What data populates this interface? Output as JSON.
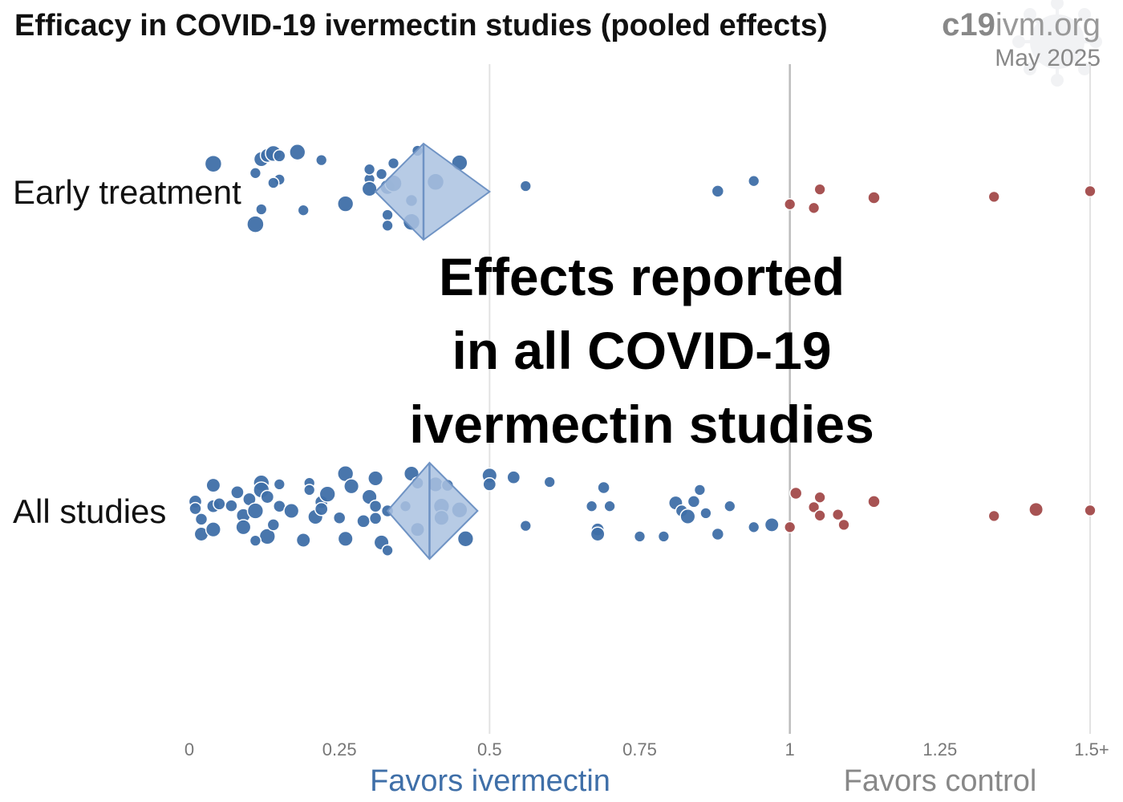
{
  "chart_data": {
    "type": "scatter",
    "title": "Efficacy in COVID-19 ivermectin studies (pooled effects)",
    "brand": {
      "bold": "c19",
      "light": "ivm.org"
    },
    "date": "May 2025",
    "overlay_text": [
      "Effects reported",
      "in all COVID-19",
      "ivermectin studies"
    ],
    "x_ticks": [
      "0",
      "0.25",
      "0.5",
      "0.75",
      "1",
      "1.25",
      "1.5+"
    ],
    "x_range": [
      0,
      1.5
    ],
    "reference_line": 1,
    "favors_left": "Favors ivermectin",
    "favors_right": "Favors control",
    "colors": {
      "benefit": "#3f6fa8",
      "harm": "#a24a4a",
      "diamond_fill": "#aac2e0",
      "diamond_stroke": "#6f93c4",
      "favor_left": "#3f6fa8",
      "favor_right": "#888888"
    },
    "series": [
      {
        "name": "Early treatment",
        "pooled": {
          "estimate": 0.39,
          "low": 0.31,
          "high": 0.5
        },
        "points": [
          [
            0.04,
            0.6,
            1.0
          ],
          [
            0.11,
            0.4,
            0.4
          ],
          [
            0.12,
            0.7,
            0.8
          ],
          [
            0.13,
            0.78,
            0.7
          ],
          [
            0.14,
            0.82,
            0.9
          ],
          [
            0.15,
            0.77,
            0.5
          ],
          [
            0.18,
            0.85,
            0.9
          ],
          [
            0.22,
            0.68,
            0.4
          ],
          [
            0.15,
            0.26,
            0.4
          ],
          [
            0.14,
            0.19,
            0.4
          ],
          [
            0.12,
            -0.38,
            0.4
          ],
          [
            0.11,
            -0.7,
            1.0
          ],
          [
            0.19,
            -0.4,
            0.4
          ],
          [
            0.26,
            -0.26,
            0.9
          ],
          [
            0.3,
            0.27,
            0.4
          ],
          [
            0.3,
            0.48,
            0.4
          ],
          [
            0.32,
            0.38,
            0.4
          ],
          [
            0.33,
            0.1,
            0.8
          ],
          [
            0.3,
            0.06,
            0.8
          ],
          [
            0.34,
            0.18,
            1.0
          ],
          [
            0.33,
            -0.5,
            0.4
          ],
          [
            0.33,
            -0.73,
            0.4
          ],
          [
            0.34,
            0.61,
            0.4
          ],
          [
            0.38,
            0.88,
            0.4
          ],
          [
            0.37,
            -0.19,
            0.5
          ],
          [
            0.37,
            -0.65,
            1.0
          ],
          [
            0.41,
            0.21,
            1.0
          ],
          [
            0.45,
            0.62,
            0.9
          ],
          [
            0.56,
            0.12,
            0.4
          ],
          [
            0.88,
            0.01,
            0.5
          ],
          [
            0.94,
            0.23,
            0.4
          ],
          [
            1.0,
            -0.27,
            0.4
          ],
          [
            1.04,
            -0.35,
            0.4
          ],
          [
            1.05,
            0.05,
            0.4
          ],
          [
            1.14,
            -0.13,
            0.5
          ],
          [
            1.34,
            -0.11,
            0.4
          ],
          [
            1.5,
            0.01,
            0.4
          ]
        ]
      },
      {
        "name": "All studies",
        "pooled": {
          "estimate": 0.4,
          "low": 0.33,
          "high": 0.48
        },
        "points": [
          [
            0.01,
            0.2,
            0.6
          ],
          [
            0.01,
            0.05,
            0.5
          ],
          [
            0.02,
            -0.18,
            0.5
          ],
          [
            0.02,
            -0.5,
            0.7
          ],
          [
            0.04,
            0.55,
            0.7
          ],
          [
            0.04,
            0.1,
            0.6
          ],
          [
            0.04,
            -0.4,
            0.8
          ],
          [
            0.05,
            0.15,
            0.5
          ],
          [
            0.07,
            0.11,
            0.5
          ],
          [
            0.08,
            0.4,
            0.6
          ],
          [
            0.09,
            -0.1,
            0.7
          ],
          [
            0.09,
            -0.35,
            0.8
          ],
          [
            0.1,
            0.25,
            0.6
          ],
          [
            0.11,
            0.0,
            0.9
          ],
          [
            0.12,
            0.6,
            0.9
          ],
          [
            0.12,
            0.45,
            0.9
          ],
          [
            0.13,
            0.3,
            0.6
          ],
          [
            0.13,
            -0.55,
            0.9
          ],
          [
            0.11,
            -0.64,
            0.4
          ],
          [
            0.14,
            -0.3,
            0.5
          ],
          [
            0.15,
            0.57,
            0.4
          ],
          [
            0.15,
            0.1,
            0.5
          ],
          [
            0.17,
            0.0,
            0.8
          ],
          [
            0.19,
            -0.63,
            0.7
          ],
          [
            0.2,
            0.6,
            0.4
          ],
          [
            0.2,
            0.45,
            0.4
          ],
          [
            0.21,
            -0.13,
            0.8
          ],
          [
            0.22,
            0.19,
            0.6
          ],
          [
            0.22,
            0.04,
            0.6
          ],
          [
            0.23,
            0.36,
            0.9
          ],
          [
            0.25,
            -0.15,
            0.5
          ],
          [
            0.26,
            0.8,
            0.9
          ],
          [
            0.27,
            0.53,
            0.8
          ],
          [
            0.26,
            -0.6,
            0.8
          ],
          [
            0.29,
            -0.22,
            0.6
          ],
          [
            0.3,
            0.3,
            0.8
          ],
          [
            0.31,
            0.1,
            0.5
          ],
          [
            0.31,
            -0.16,
            0.5
          ],
          [
            0.31,
            0.7,
            0.8
          ],
          [
            0.32,
            -0.68,
            0.8
          ],
          [
            0.33,
            0.0,
            0.5
          ],
          [
            0.33,
            -0.85,
            0.4
          ],
          [
            0.36,
            0.1,
            0.4
          ],
          [
            0.37,
            0.8,
            0.8
          ],
          [
            0.38,
            0.6,
            0.5
          ],
          [
            0.38,
            -0.4,
            0.7
          ],
          [
            0.41,
            0.57,
            0.8
          ],
          [
            0.42,
            0.1,
            0.9
          ],
          [
            0.42,
            -0.15,
            0.8
          ],
          [
            0.43,
            0.55,
            0.5
          ],
          [
            0.45,
            0.02,
            0.9
          ],
          [
            0.46,
            -0.6,
            0.9
          ],
          [
            0.5,
            0.76,
            0.8
          ],
          [
            0.5,
            0.57,
            0.6
          ],
          [
            0.54,
            0.72,
            0.6
          ],
          [
            0.56,
            -0.32,
            0.4
          ],
          [
            0.6,
            0.62,
            0.4
          ],
          [
            0.67,
            0.1,
            0.4
          ],
          [
            0.69,
            0.5,
            0.5
          ],
          [
            0.7,
            0.1,
            0.4
          ],
          [
            0.68,
            -0.4,
            0.6
          ],
          [
            0.68,
            -0.5,
            0.7
          ],
          [
            0.75,
            -0.55,
            0.4
          ],
          [
            0.79,
            -0.55,
            0.4
          ],
          [
            0.81,
            0.17,
            0.7
          ],
          [
            0.82,
            0.0,
            0.5
          ],
          [
            0.83,
            -0.12,
            0.8
          ],
          [
            0.84,
            0.2,
            0.5
          ],
          [
            0.85,
            0.45,
            0.4
          ],
          [
            0.86,
            -0.05,
            0.4
          ],
          [
            0.88,
            -0.5,
            0.5
          ],
          [
            0.9,
            0.1,
            0.4
          ],
          [
            0.94,
            -0.35,
            0.4
          ],
          [
            0.97,
            -0.3,
            0.7
          ],
          [
            1.0,
            -0.35,
            0.4
          ],
          [
            1.01,
            0.38,
            0.5
          ],
          [
            1.04,
            0.08,
            0.4
          ],
          [
            1.05,
            -0.1,
            0.4
          ],
          [
            1.05,
            0.29,
            0.4
          ],
          [
            1.08,
            -0.08,
            0.4
          ],
          [
            1.09,
            -0.3,
            0.4
          ],
          [
            1.14,
            0.2,
            0.5
          ],
          [
            1.34,
            -0.11,
            0.4
          ],
          [
            1.41,
            0.03,
            0.7
          ],
          [
            1.5,
            0.01,
            0.4
          ]
        ]
      }
    ]
  }
}
